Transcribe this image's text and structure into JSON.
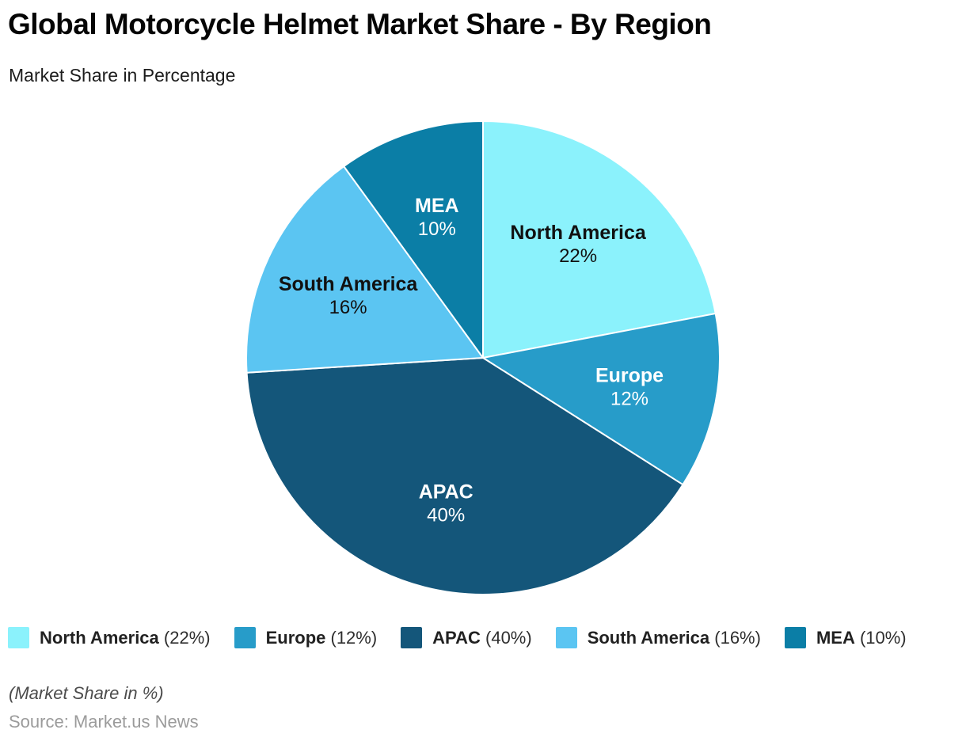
{
  "header": {
    "title": "Global Motorcycle Helmet Market Share - By Region",
    "subtitle": "Market Share in Percentage"
  },
  "chart_data": {
    "type": "pie",
    "title": "Global Motorcycle Helmet Market Share - By Region",
    "unit": "%",
    "start_angle_deg": 0,
    "direction": "clockwise",
    "legend_position": "bottom",
    "slices": [
      {
        "label": "North America",
        "value": 22,
        "value_label": "22%",
        "color": "#8BF2FC",
        "label_color": "#111111"
      },
      {
        "label": "Europe",
        "value": 12,
        "value_label": "12%",
        "color": "#279CC9",
        "label_color": "#FFFFFF"
      },
      {
        "label": "APAC",
        "value": 40,
        "value_label": "40%",
        "color": "#14567A",
        "label_color": "#FFFFFF"
      },
      {
        "label": "South America",
        "value": 16,
        "value_label": "16%",
        "color": "#5BC5F2",
        "label_color": "#111111"
      },
      {
        "label": "MEA",
        "value": 10,
        "value_label": "10%",
        "color": "#0B7EA6",
        "label_color": "#FFFFFF"
      }
    ]
  },
  "legend": {
    "items": [
      {
        "label": "North America",
        "value_text": "(22%)",
        "color": "#8BF2FC"
      },
      {
        "label": "Europe",
        "value_text": "(12%)",
        "color": "#279CC9"
      },
      {
        "label": "APAC",
        "value_text": "(40%)",
        "color": "#14567A"
      },
      {
        "label": "South America",
        "value_text": "(16%)",
        "color": "#5BC5F2"
      },
      {
        "label": "MEA",
        "value_text": "(10%)",
        "color": "#0B7EA6"
      }
    ]
  },
  "footer": {
    "note": "(Market Share in %)",
    "source": "Source: Market.us News"
  },
  "colors": {
    "background": "#FFFFFF",
    "slice_border": "#FFFFFF",
    "title_text": "#050505",
    "footnote_text": "#4C4C4C",
    "source_text": "#9B9B9B"
  }
}
